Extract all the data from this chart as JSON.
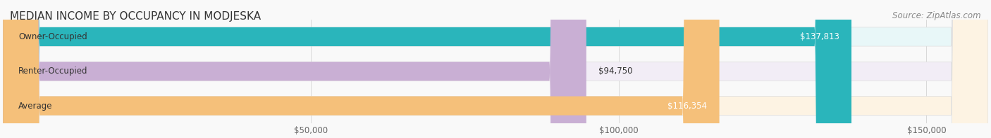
{
  "title": "MEDIAN INCOME BY OCCUPANCY IN MODJESKA",
  "source": "Source: ZipAtlas.com",
  "categories": [
    "Owner-Occupied",
    "Renter-Occupied",
    "Average"
  ],
  "values": [
    137813,
    94750,
    116354
  ],
  "labels": [
    "$137,813",
    "$94,750",
    "$116,354"
  ],
  "bar_colors": [
    "#2ab5bb",
    "#c9afd4",
    "#f5c07a"
  ],
  "bar_bg_colors": [
    "#e8f7f8",
    "#f2edf6",
    "#fdf3e3"
  ],
  "xlim": [
    0,
    160000
  ],
  "xticks": [
    0,
    50000,
    100000,
    150000
  ],
  "xticklabels": [
    "",
    "$50,000",
    "$100,000",
    "$150,000"
  ],
  "title_fontsize": 11,
  "source_fontsize": 8.5,
  "label_fontsize": 8.5,
  "bar_label_fontsize": 8.5,
  "ylabel_fontsize": 9,
  "background_color": "#f9f9f9",
  "bar_height": 0.55
}
